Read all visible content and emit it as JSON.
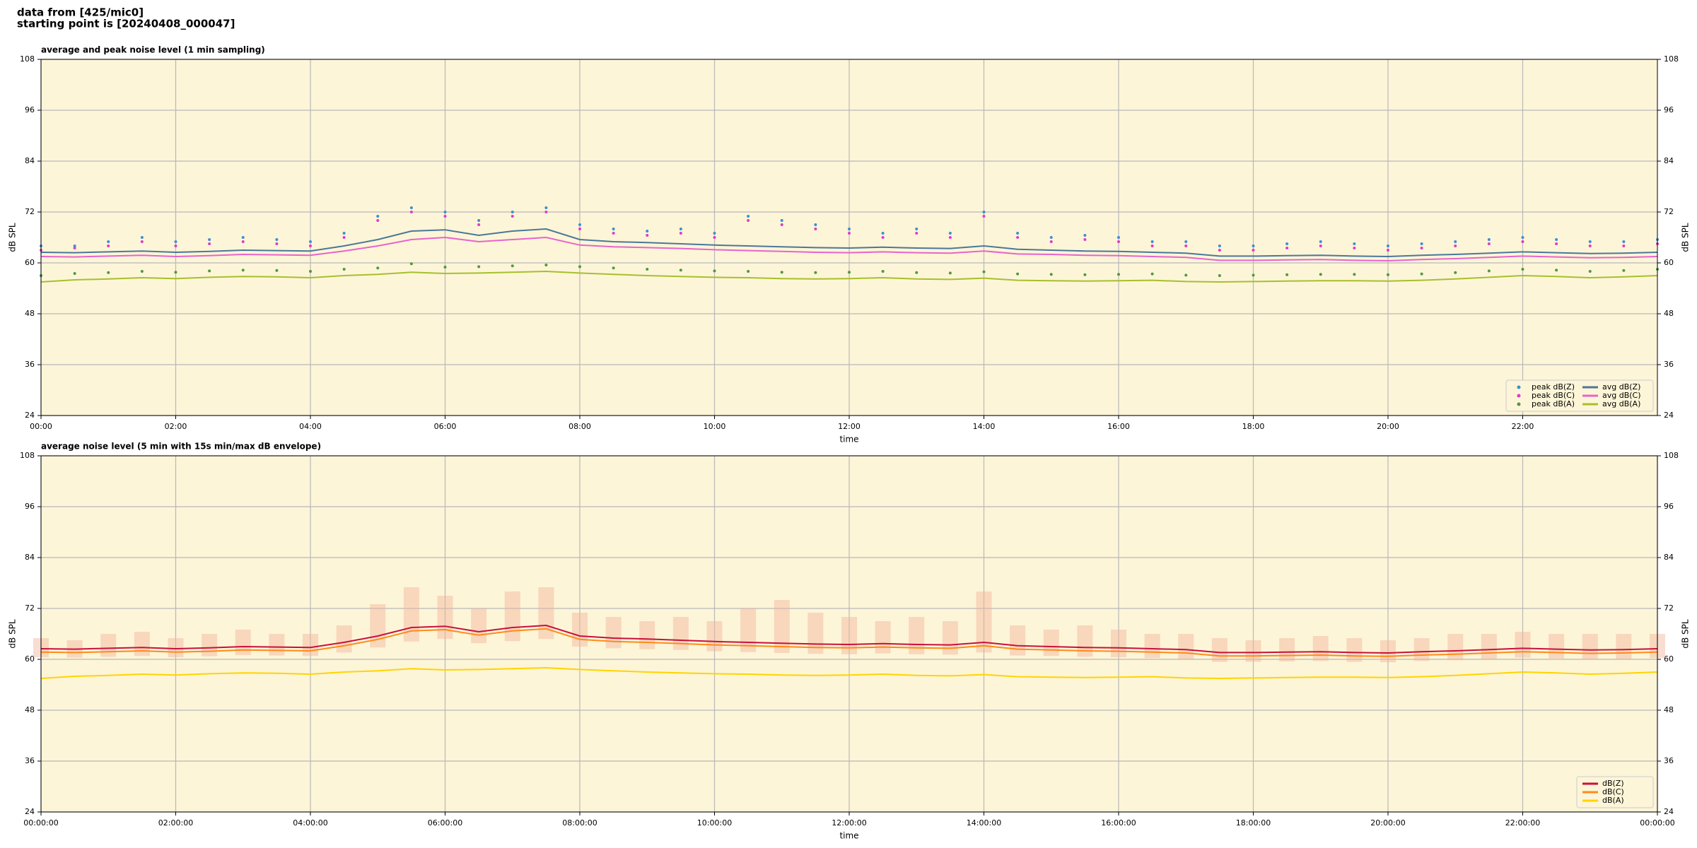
{
  "header": {
    "lines": [
      "data from [425/mic0]",
      "starting point is [20240408_000047]"
    ]
  },
  "chart_data": [
    {
      "type": "line",
      "title": "average and peak noise level (1 min sampling)",
      "xlabel": "time",
      "ylabel": "dB SPL",
      "xlim": [
        0,
        24
      ],
      "ylim": [
        24,
        108
      ],
      "yticks": [
        24,
        36,
        48,
        60,
        72,
        84,
        96,
        108
      ],
      "xticks": [
        {
          "value": 0,
          "label": "00:00"
        },
        {
          "value": 2,
          "label": "02:00"
        },
        {
          "value": 4,
          "label": "04:00"
        },
        {
          "value": 6,
          "label": "06:00"
        },
        {
          "value": 8,
          "label": "08:00"
        },
        {
          "value": 10,
          "label": "10:00"
        },
        {
          "value": 12,
          "label": "12:00"
        },
        {
          "value": 14,
          "label": "14:00"
        },
        {
          "value": 16,
          "label": "16:00"
        },
        {
          "value": 18,
          "label": "18:00"
        },
        {
          "value": 20,
          "label": "20:00"
        },
        {
          "value": 22,
          "label": "22:00"
        }
      ],
      "grid": true,
      "background": "#fdf5d8",
      "legend": "lower right",
      "legend_columns": 2,
      "x": [
        0,
        0.5,
        1,
        1.5,
        2,
        2.5,
        3,
        3.5,
        4,
        4.5,
        5,
        5.5,
        6,
        6.5,
        7,
        7.5,
        8,
        8.5,
        9,
        9.5,
        10,
        10.5,
        11,
        11.5,
        12,
        12.5,
        13,
        13.5,
        14,
        14.5,
        15,
        15.5,
        16,
        16.5,
        17,
        17.5,
        18,
        18.5,
        19,
        19.5,
        20,
        20.5,
        21,
        21.5,
        22,
        22.5,
        23,
        23.5,
        24
      ],
      "series": [
        {
          "name": "peak dB(Z)",
          "kind": "points",
          "color": "#3d8fd8",
          "values": [
            64,
            64,
            65,
            66,
            65,
            65.5,
            66,
            65.5,
            65,
            67,
            71,
            73,
            72,
            70,
            72,
            73,
            69,
            68,
            67.5,
            68,
            67,
            71,
            70,
            69,
            68,
            67,
            68,
            67,
            72,
            67,
            66,
            66.5,
            66,
            65,
            65,
            64,
            64,
            64.5,
            65,
            64.5,
            64,
            64.5,
            65,
            65.5,
            66,
            65.5,
            65,
            65,
            65.5
          ]
        },
        {
          "name": "peak dB(C)",
          "kind": "points",
          "color": "#e03cc8",
          "values": [
            63,
            63.5,
            64,
            65,
            64,
            64.5,
            65,
            64.5,
            64,
            66,
            70,
            72,
            71,
            69,
            71,
            72,
            68,
            67,
            66.5,
            67,
            66,
            70,
            69,
            68,
            67,
            66,
            67,
            66,
            71,
            66,
            65,
            65.5,
            65,
            64,
            64,
            63,
            63,
            63.5,
            64,
            63.5,
            63,
            63.5,
            64,
            64.5,
            65,
            64.5,
            64,
            64,
            64.5
          ]
        },
        {
          "name": "peak dB(A)",
          "kind": "points",
          "color": "#4f9a3c",
          "values": [
            57,
            57.5,
            57.7,
            58,
            57.8,
            58.1,
            58.3,
            58.2,
            58,
            58.5,
            58.8,
            59.8,
            59,
            59.1,
            59.3,
            59.5,
            59.1,
            58.8,
            58.5,
            58.3,
            58.1,
            58,
            57.8,
            57.7,
            57.8,
            58,
            57.7,
            57.6,
            57.9,
            57.4,
            57.3,
            57.2,
            57.3,
            57.4,
            57.1,
            57,
            57.1,
            57.2,
            57.3,
            57.3,
            57.2,
            57.4,
            57.7,
            58.1,
            58.5,
            58.3,
            58,
            58.2,
            58.5
          ]
        },
        {
          "name": "avg dB(Z)",
          "kind": "line",
          "color": "#4a7898",
          "values": [
            62.5,
            62.4,
            62.6,
            62.8,
            62.5,
            62.7,
            63,
            62.9,
            62.8,
            64,
            65.5,
            67.5,
            67.8,
            66.5,
            67.5,
            68,
            65.5,
            65,
            64.8,
            64.5,
            64.2,
            64,
            63.8,
            63.6,
            63.5,
            63.7,
            63.5,
            63.4,
            64,
            63.2,
            63,
            62.8,
            62.7,
            62.5,
            62.3,
            61.6,
            61.6,
            61.7,
            61.8,
            61.6,
            61.5,
            61.8,
            62,
            62.3,
            62.6,
            62.4,
            62.2,
            62.3,
            62.5
          ]
        },
        {
          "name": "avg dB(C)",
          "kind": "line",
          "color": "#e864cc",
          "values": [
            61.5,
            61.4,
            61.6,
            61.8,
            61.5,
            61.7,
            62,
            61.9,
            61.8,
            62.8,
            64,
            65.5,
            66,
            65,
            65.5,
            66,
            64.2,
            63.8,
            63.6,
            63.4,
            63.1,
            62.9,
            62.7,
            62.5,
            62.4,
            62.6,
            62.4,
            62.3,
            62.8,
            62.1,
            62,
            61.8,
            61.7,
            61.5,
            61.3,
            60.6,
            60.6,
            60.7,
            60.8,
            60.6,
            60.5,
            60.8,
            61,
            61.3,
            61.6,
            61.4,
            61.2,
            61.3,
            61.5
          ]
        },
        {
          "name": "avg dB(A)",
          "kind": "line",
          "color": "#a6c02c",
          "values": [
            55.5,
            56,
            56.2,
            56.5,
            56.3,
            56.6,
            56.8,
            56.7,
            56.5,
            57,
            57.3,
            57.8,
            57.5,
            57.6,
            57.8,
            58,
            57.6,
            57.3,
            57,
            56.8,
            56.6,
            56.5,
            56.3,
            56.2,
            56.3,
            56.5,
            56.2,
            56.1,
            56.4,
            55.9,
            55.8,
            55.7,
            55.8,
            55.9,
            55.6,
            55.5,
            55.6,
            55.7,
            55.8,
            55.8,
            55.7,
            55.9,
            56.2,
            56.6,
            57,
            56.8,
            56.5,
            56.7,
            57
          ]
        }
      ]
    },
    {
      "type": "line",
      "title": "average noise level (5 min with 15s min/max dB envelope)",
      "xlabel": "time",
      "ylabel": "dB SPL",
      "xlim": [
        0,
        24
      ],
      "ylim": [
        24,
        108
      ],
      "yticks": [
        24,
        36,
        48,
        60,
        72,
        84,
        96,
        108
      ],
      "xticks": [
        {
          "value": 0,
          "label": "00:00:00"
        },
        {
          "value": 2,
          "label": "02:00:00"
        },
        {
          "value": 4,
          "label": "04:00:00"
        },
        {
          "value": 6,
          "label": "06:00:00"
        },
        {
          "value": 8,
          "label": "08:00:00"
        },
        {
          "value": 10,
          "label": "10:00:00"
        },
        {
          "value": 12,
          "label": "12:00:00"
        },
        {
          "value": 14,
          "label": "14:00:00"
        },
        {
          "value": 16,
          "label": "16:00:00"
        },
        {
          "value": 18,
          "label": "18:00:00"
        },
        {
          "value": 20,
          "label": "20:00:00"
        },
        {
          "value": 22,
          "label": "22:00:00"
        },
        {
          "value": 24,
          "label": "00:00:00"
        }
      ],
      "grid": true,
      "background": "#fdf5d8",
      "legend": "lower right",
      "legend_columns": 1,
      "x": [
        0,
        0.5,
        1,
        1.5,
        2,
        2.5,
        3,
        3.5,
        4,
        4.5,
        5,
        5.5,
        6,
        6.5,
        7,
        7.5,
        8,
        8.5,
        9,
        9.5,
        10,
        10.5,
        11,
        11.5,
        12,
        12.5,
        13,
        13.5,
        14,
        14.5,
        15,
        15.5,
        16,
        16.5,
        17,
        17.5,
        18,
        18.5,
        19,
        19.5,
        20,
        20.5,
        21,
        21.5,
        22,
        22.5,
        23,
        23.5,
        24
      ],
      "band": {
        "color": "#f2b49c",
        "lower": [
          60.5,
          60.4,
          60.6,
          60.8,
          60.5,
          60.7,
          61,
          60.9,
          60.8,
          61.6,
          62.8,
          64.2,
          64.8,
          63.8,
          64.3,
          64.8,
          63,
          62.6,
          62.4,
          62.2,
          61.9,
          61.7,
          61.5,
          61.3,
          61.2,
          61.4,
          61.2,
          61.1,
          61.6,
          60.9,
          60.8,
          60.6,
          60.5,
          60.3,
          60.1,
          59.4,
          59.4,
          59.5,
          59.6,
          59.4,
          59.3,
          59.6,
          59.8,
          60.1,
          60.4,
          60.2,
          60,
          60.1,
          60.3
        ],
        "upper": [
          65,
          64.5,
          66,
          66.5,
          65,
          66,
          67,
          66,
          66,
          68,
          73,
          77,
          75,
          72,
          76,
          77,
          71,
          70,
          69,
          70,
          69,
          72,
          74,
          71,
          70,
          69,
          70,
          69,
          76,
          68,
          67,
          68,
          67,
          66,
          66,
          65,
          64.5,
          65,
          65.5,
          65,
          64.5,
          65,
          66,
          66,
          66.5,
          66,
          66,
          66,
          66
        ]
      },
      "series": [
        {
          "name": "dB(Z)",
          "kind": "line",
          "color": "#c8103c",
          "values": [
            62.5,
            62.4,
            62.6,
            62.8,
            62.5,
            62.7,
            63,
            62.9,
            62.8,
            64,
            65.5,
            67.5,
            67.8,
            66.5,
            67.5,
            68,
            65.5,
            65,
            64.8,
            64.5,
            64.2,
            64,
            63.8,
            63.6,
            63.5,
            63.7,
            63.5,
            63.4,
            64,
            63.2,
            63,
            62.8,
            62.7,
            62.5,
            62.3,
            61.6,
            61.6,
            61.7,
            61.8,
            61.6,
            61.5,
            61.8,
            62,
            62.3,
            62.6,
            62.4,
            62.2,
            62.3,
            62.5
          ]
        },
        {
          "name": "dB(C)",
          "kind": "line",
          "color": "#ff8a1a",
          "values": [
            61.7,
            61.6,
            61.8,
            62,
            61.7,
            61.9,
            62.2,
            62.1,
            62,
            63.2,
            64.7,
            66.7,
            67,
            65.7,
            66.7,
            67.2,
            64.7,
            64.2,
            64,
            63.7,
            63.4,
            63.2,
            63,
            62.8,
            62.7,
            62.9,
            62.7,
            62.6,
            63.2,
            62.4,
            62.2,
            62,
            61.9,
            61.7,
            61.5,
            60.8,
            60.8,
            60.9,
            61,
            60.8,
            60.7,
            61,
            61.2,
            61.5,
            61.8,
            61.6,
            61.4,
            61.5,
            61.7
          ]
        },
        {
          "name": "dB(A)",
          "kind": "line",
          "color": "#ffd400",
          "values": [
            55.5,
            56,
            56.2,
            56.5,
            56.3,
            56.6,
            56.8,
            56.7,
            56.5,
            57,
            57.3,
            57.8,
            57.5,
            57.6,
            57.8,
            58,
            57.6,
            57.3,
            57,
            56.8,
            56.6,
            56.5,
            56.3,
            56.2,
            56.3,
            56.5,
            56.2,
            56.1,
            56.4,
            55.9,
            55.8,
            55.7,
            55.8,
            55.9,
            55.6,
            55.5,
            55.6,
            55.7,
            55.8,
            55.8,
            55.7,
            55.9,
            56.2,
            56.6,
            57,
            56.8,
            56.5,
            56.7,
            57
          ]
        }
      ]
    }
  ]
}
